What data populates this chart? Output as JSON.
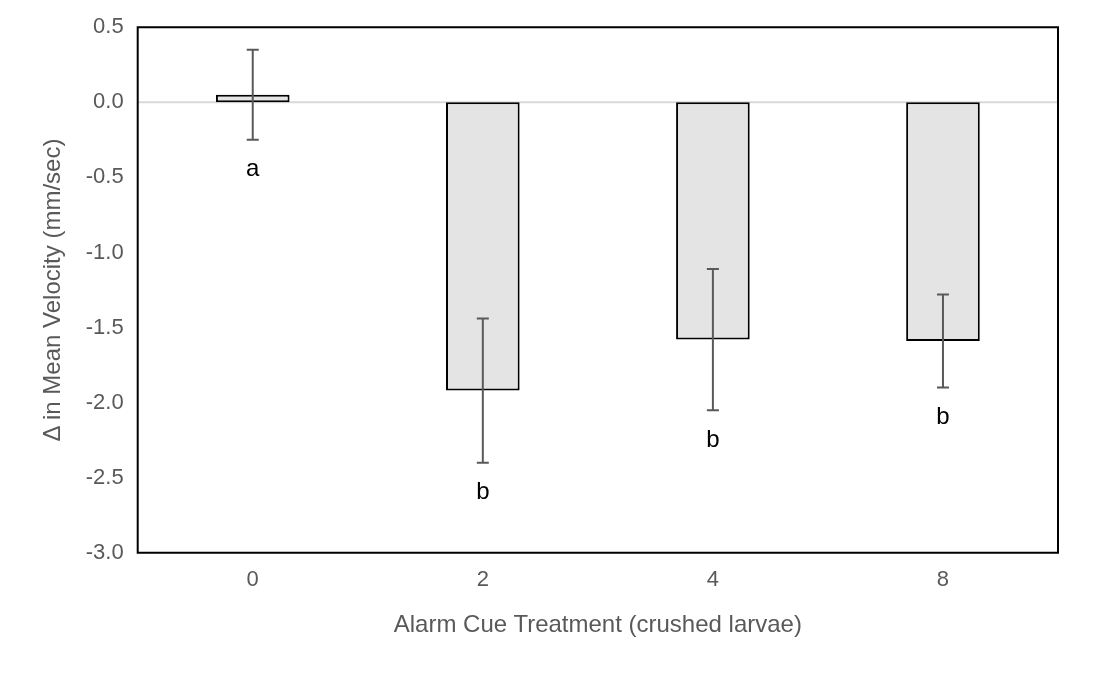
{
  "chart_data": {
    "type": "bar",
    "xlabel": "Alarm Cue Treatment (crushed larvae)",
    "ylabel": "Δ in Mean Velocity (mm/sec)",
    "categories": [
      "0",
      "2",
      "4",
      "8"
    ],
    "values": [
      0.05,
      -1.92,
      -1.58,
      -1.59
    ],
    "errors": [
      0.3,
      0.48,
      0.47,
      0.31
    ],
    "color": "#e4e4e4",
    "ylim": [
      -3.0,
      0.5
    ],
    "yticks": [
      {
        "value": 0.5,
        "label": "0.5"
      },
      {
        "value": 0,
        "label": "0.0"
      },
      {
        "value": -0.5,
        "label": "-0.5"
      },
      {
        "value": -1,
        "label": "-1.0"
      },
      {
        "value": -1.5,
        "label": "-1.5"
      },
      {
        "value": -2,
        "label": "-2.0"
      },
      {
        "value": -2.5,
        "label": "-2.5"
      },
      {
        "value": -3,
        "label": "-3.0"
      }
    ],
    "ref_lines": [
      {
        "axis": "y",
        "value": 0,
        "color": "#d9d9d9"
      }
    ],
    "annotations": [
      "a",
      "b",
      "b",
      "b"
    ],
    "grid": false,
    "legend": false
  }
}
